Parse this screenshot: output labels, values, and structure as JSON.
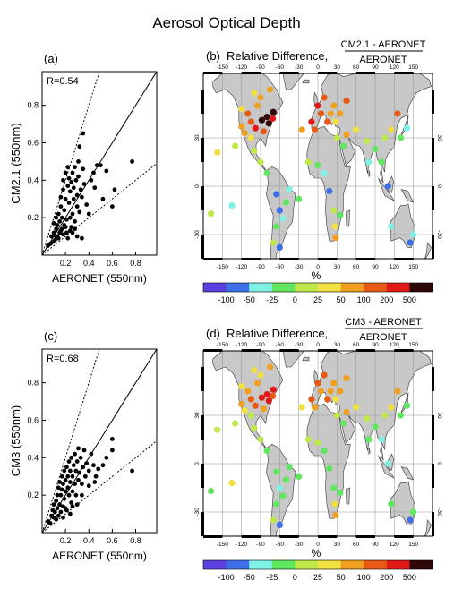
{
  "title": "Aerosol Optical Depth",
  "colors": {
    "land": "#c8c8c8",
    "ocean": "#ffffff",
    "grid": "#909090",
    "palette": [
      "#5b3fe0",
      "#3f6fe8",
      "#7ff2e6",
      "#5fe85f",
      "#bfe84a",
      "#f0e040",
      "#f0a020",
      "#e85a14",
      "#e01818",
      "#300808"
    ]
  },
  "colorbar": {
    "labels": [
      "-100",
      "-50",
      "-25",
      "0",
      "25",
      "50",
      "100",
      "200",
      "500"
    ]
  },
  "chart_data": [
    {
      "type": "scatter",
      "panel_label": "(a)",
      "annotation": "R=0.54",
      "xlabel": "AERONET  (550nm)",
      "ylabel": "CM2.1  (550nm)",
      "xlim": [
        0,
        0.98
      ],
      "ylim": [
        0,
        0.98
      ],
      "xticks": [
        "0.2",
        "0.4",
        "0.6",
        "0.8"
      ],
      "yticks": [
        "0.2",
        "0.4",
        "0.6",
        "0.8"
      ],
      "reference_lines": [
        "1:1",
        "2:1",
        "1:2"
      ],
      "points": [
        [
          0.05,
          0.05
        ],
        [
          0.07,
          0.06
        ],
        [
          0.08,
          0.1
        ],
        [
          0.09,
          0.07
        ],
        [
          0.1,
          0.12
        ],
        [
          0.1,
          0.17
        ],
        [
          0.11,
          0.08
        ],
        [
          0.12,
          0.14
        ],
        [
          0.12,
          0.2
        ],
        [
          0.13,
          0.1
        ],
        [
          0.13,
          0.16
        ],
        [
          0.14,
          0.22
        ],
        [
          0.15,
          0.12
        ],
        [
          0.15,
          0.18
        ],
        [
          0.16,
          0.26
        ],
        [
          0.16,
          0.31
        ],
        [
          0.17,
          0.14
        ],
        [
          0.17,
          0.2
        ],
        [
          0.18,
          0.35
        ],
        [
          0.18,
          0.4
        ],
        [
          0.19,
          0.16
        ],
        [
          0.19,
          0.24
        ],
        [
          0.2,
          0.3
        ],
        [
          0.2,
          0.44
        ],
        [
          0.21,
          0.12
        ],
        [
          0.21,
          0.19
        ],
        [
          0.22,
          0.37
        ],
        [
          0.22,
          0.47
        ],
        [
          0.23,
          0.28
        ],
        [
          0.23,
          0.41
        ],
        [
          0.24,
          0.2
        ],
        [
          0.24,
          0.34
        ],
        [
          0.25,
          0.15
        ],
        [
          0.25,
          0.39
        ],
        [
          0.26,
          0.22
        ],
        [
          0.26,
          0.44
        ],
        [
          0.27,
          0.3
        ],
        [
          0.27,
          0.36
        ],
        [
          0.28,
          0.47
        ],
        [
          0.28,
          0.18
        ],
        [
          0.29,
          0.4
        ],
        [
          0.3,
          0.26
        ],
        [
          0.3,
          0.32
        ],
        [
          0.31,
          0.42
        ],
        [
          0.31,
          0.5
        ],
        [
          0.32,
          0.23
        ],
        [
          0.32,
          0.58
        ],
        [
          0.33,
          0.35
        ],
        [
          0.34,
          0.31
        ],
        [
          0.35,
          0.46
        ],
        [
          0.35,
          0.65
        ],
        [
          0.36,
          0.38
        ],
        [
          0.38,
          0.27
        ],
        [
          0.4,
          0.22
        ],
        [
          0.42,
          0.4
        ],
        [
          0.44,
          0.44
        ],
        [
          0.45,
          0.36
        ],
        [
          0.47,
          0.48
        ],
        [
          0.5,
          0.48
        ],
        [
          0.52,
          0.3
        ],
        [
          0.55,
          0.45
        ],
        [
          0.6,
          0.26
        ],
        [
          0.62,
          0.35
        ],
        [
          0.77,
          0.5
        ],
        [
          0.14,
          0.09
        ],
        [
          0.18,
          0.11
        ],
        [
          0.22,
          0.09
        ],
        [
          0.26,
          0.12
        ],
        [
          0.3,
          0.1
        ],
        [
          0.34,
          0.09
        ],
        [
          0.16,
          0.13
        ],
        [
          0.12,
          0.1
        ],
        [
          0.2,
          0.15
        ],
        [
          0.24,
          0.13
        ],
        [
          0.28,
          0.14
        ]
      ]
    },
    {
      "type": "map",
      "panel_label": "(b)",
      "title": "Relative Difference,",
      "fraction_numerator": "CM2.1 - AERONET",
      "fraction_denominator": "AERONET",
      "lon_ticks": [
        "-150",
        "-120",
        "-90",
        "-60",
        "-30",
        "0",
        "30",
        "60",
        "90",
        "120",
        "150"
      ],
      "lat_ticks": [
        "30",
        "0",
        "-30"
      ],
      "colorbar_unit": "%",
      "sites": [
        [
          -158,
          21,
          5
        ],
        [
          -120,
          37,
          6
        ],
        [
          -105,
          40,
          7
        ],
        [
          -98,
          36,
          8
        ],
        [
          -88,
          41,
          9
        ],
        [
          -77,
          39,
          9
        ],
        [
          -71,
          42,
          8
        ],
        [
          -80,
          43,
          9
        ],
        [
          -110,
          45,
          7
        ],
        [
          -95,
          50,
          6
        ],
        [
          -90,
          55,
          6
        ],
        [
          -100,
          58,
          5
        ],
        [
          -75,
          60,
          6
        ],
        [
          -70,
          46,
          9
        ],
        [
          -85,
          34,
          7
        ],
        [
          -105,
          30,
          5
        ],
        [
          -120,
          48,
          5
        ],
        [
          -115,
          33,
          6
        ],
        [
          -100,
          22,
          4
        ],
        [
          -90,
          15,
          4
        ],
        [
          -80,
          8,
          3
        ],
        [
          -65,
          -5,
          1
        ],
        [
          -60,
          -15,
          1
        ],
        [
          -55,
          -20,
          2
        ],
        [
          -65,
          -25,
          3
        ],
        [
          -70,
          -35,
          4
        ],
        [
          -50,
          -10,
          3
        ],
        [
          -45,
          -2,
          2
        ],
        [
          -30,
          -8,
          3
        ],
        [
          -60,
          -38,
          1
        ],
        [
          -168,
          -17,
          4
        ],
        [
          -135,
          -12,
          2
        ],
        [
          15,
          40,
          7
        ],
        [
          25,
          50,
          6
        ],
        [
          35,
          45,
          6
        ],
        [
          0,
          50,
          8
        ],
        [
          10,
          55,
          7
        ],
        [
          20,
          45,
          6
        ],
        [
          28,
          40,
          5
        ],
        [
          -10,
          40,
          8
        ],
        [
          -5,
          35,
          7
        ],
        [
          40,
          25,
          3
        ],
        [
          45,
          32,
          6
        ],
        [
          30,
          30,
          4
        ],
        [
          -15,
          15,
          4
        ],
        [
          0,
          13,
          3
        ],
        [
          10,
          8,
          2
        ],
        [
          18,
          -3,
          1
        ],
        [
          25,
          -15,
          4
        ],
        [
          27,
          -25,
          5
        ],
        [
          35,
          -18,
          3
        ],
        [
          28,
          -32,
          6
        ],
        [
          77,
          28,
          4
        ],
        [
          80,
          15,
          2
        ],
        [
          90,
          23,
          3
        ],
        [
          105,
          30,
          4
        ],
        [
          115,
          35,
          5
        ],
        [
          125,
          45,
          7
        ],
        [
          140,
          36,
          2
        ],
        [
          130,
          30,
          3
        ],
        [
          100,
          15,
          3
        ],
        [
          110,
          0,
          1
        ],
        [
          115,
          -25,
          2
        ],
        [
          145,
          -35,
          1
        ],
        [
          150,
          -30,
          2
        ],
        [
          -130,
          25,
          4
        ],
        [
          45,
          53,
          7
        ],
        [
          60,
          35,
          5
        ],
        [
          -25,
          35,
          6
        ],
        [
          5,
          45,
          7
        ]
      ]
    },
    {
      "type": "scatter",
      "panel_label": "(c)",
      "annotation": "R=0.68",
      "xlabel": "AERONET  (550nm)",
      "ylabel": "CM3  (550nm)",
      "xlim": [
        0,
        0.98
      ],
      "ylim": [
        0,
        0.98
      ],
      "xticks": [
        "0.2",
        "0.4",
        "0.6",
        "0.8"
      ],
      "yticks": [
        "0.2",
        "0.4",
        "0.6",
        "0.8"
      ],
      "reference_lines": [
        "1:1",
        "2:1",
        "1:2"
      ],
      "points": [
        [
          0.05,
          0.06
        ],
        [
          0.07,
          0.05
        ],
        [
          0.08,
          0.09
        ],
        [
          0.09,
          0.12
        ],
        [
          0.1,
          0.08
        ],
        [
          0.1,
          0.15
        ],
        [
          0.11,
          0.11
        ],
        [
          0.12,
          0.07
        ],
        [
          0.12,
          0.17
        ],
        [
          0.13,
          0.13
        ],
        [
          0.13,
          0.2
        ],
        [
          0.14,
          0.09
        ],
        [
          0.14,
          0.24
        ],
        [
          0.15,
          0.15
        ],
        [
          0.15,
          0.27
        ],
        [
          0.16,
          0.11
        ],
        [
          0.16,
          0.2
        ],
        [
          0.17,
          0.23
        ],
        [
          0.17,
          0.3
        ],
        [
          0.18,
          0.14
        ],
        [
          0.18,
          0.26
        ],
        [
          0.19,
          0.18
        ],
        [
          0.19,
          0.33
        ],
        [
          0.2,
          0.22
        ],
        [
          0.2,
          0.28
        ],
        [
          0.21,
          0.12
        ],
        [
          0.21,
          0.35
        ],
        [
          0.22,
          0.24
        ],
        [
          0.22,
          0.3
        ],
        [
          0.23,
          0.2
        ],
        [
          0.23,
          0.38
        ],
        [
          0.24,
          0.27
        ],
        [
          0.24,
          0.33
        ],
        [
          0.25,
          0.16
        ],
        [
          0.25,
          0.4
        ],
        [
          0.26,
          0.22
        ],
        [
          0.26,
          0.3
        ],
        [
          0.27,
          0.36
        ],
        [
          0.28,
          0.26
        ],
        [
          0.28,
          0.42
        ],
        [
          0.29,
          0.2
        ],
        [
          0.29,
          0.33
        ],
        [
          0.3,
          0.38
        ],
        [
          0.31,
          0.28
        ],
        [
          0.31,
          0.45
        ],
        [
          0.32,
          0.32
        ],
        [
          0.33,
          0.4
        ],
        [
          0.34,
          0.26
        ],
        [
          0.35,
          0.35
        ],
        [
          0.36,
          0.44
        ],
        [
          0.37,
          0.3
        ],
        [
          0.38,
          0.37
        ],
        [
          0.4,
          0.33
        ],
        [
          0.42,
          0.42
        ],
        [
          0.44,
          0.36
        ],
        [
          0.46,
          0.3
        ],
        [
          0.48,
          0.34
        ],
        [
          0.52,
          0.36
        ],
        [
          0.55,
          0.4
        ],
        [
          0.6,
          0.44
        ],
        [
          0.6,
          0.5
        ],
        [
          0.77,
          0.33
        ],
        [
          0.3,
          0.15
        ],
        [
          0.34,
          0.2
        ],
        [
          0.24,
          0.1
        ],
        [
          0.18,
          0.08
        ],
        [
          0.4,
          0.25
        ],
        [
          0.45,
          0.27
        ],
        [
          0.2,
          0.13
        ],
        [
          0.26,
          0.14
        ]
      ]
    },
    {
      "type": "map",
      "panel_label": "(d)",
      "title": "Relative Difference,",
      "fraction_numerator": "CM3 - AERONET",
      "fraction_denominator": "AERONET",
      "lon_ticks": [
        "-150",
        "-120",
        "-90",
        "-60",
        "-30",
        "0",
        "30",
        "60",
        "90",
        "120",
        "150"
      ],
      "lat_ticks": [
        "30",
        "0",
        "-30"
      ],
      "colorbar_unit": "%",
      "sites": [
        [
          -158,
          21,
          4
        ],
        [
          -120,
          37,
          6
        ],
        [
          -105,
          40,
          7
        ],
        [
          -98,
          36,
          7
        ],
        [
          -88,
          41,
          8
        ],
        [
          -77,
          39,
          8
        ],
        [
          -71,
          42,
          7
        ],
        [
          -80,
          43,
          8
        ],
        [
          -110,
          45,
          6
        ],
        [
          -95,
          50,
          6
        ],
        [
          -90,
          55,
          5
        ],
        [
          -100,
          58,
          5
        ],
        [
          -75,
          60,
          6
        ],
        [
          -70,
          46,
          8
        ],
        [
          -85,
          34,
          6
        ],
        [
          -105,
          30,
          4
        ],
        [
          -120,
          48,
          5
        ],
        [
          -115,
          33,
          5
        ],
        [
          -100,
          22,
          4
        ],
        [
          -90,
          15,
          4
        ],
        [
          -80,
          8,
          3
        ],
        [
          -65,
          -5,
          3
        ],
        [
          -60,
          -15,
          2
        ],
        [
          -55,
          -20,
          3
        ],
        [
          -65,
          -25,
          3
        ],
        [
          -70,
          -35,
          4
        ],
        [
          -50,
          -10,
          3
        ],
        [
          -45,
          -2,
          3
        ],
        [
          -30,
          -8,
          3
        ],
        [
          -60,
          -38,
          1
        ],
        [
          -168,
          -17,
          3
        ],
        [
          -135,
          -12,
          5
        ],
        [
          15,
          40,
          7
        ],
        [
          25,
          50,
          6
        ],
        [
          35,
          45,
          6
        ],
        [
          0,
          50,
          7
        ],
        [
          10,
          55,
          7
        ],
        [
          20,
          45,
          6
        ],
        [
          28,
          40,
          5
        ],
        [
          -10,
          40,
          7
        ],
        [
          -5,
          35,
          6
        ],
        [
          40,
          25,
          3
        ],
        [
          45,
          32,
          6
        ],
        [
          30,
          30,
          4
        ],
        [
          -15,
          15,
          4
        ],
        [
          0,
          13,
          4
        ],
        [
          10,
          8,
          3
        ],
        [
          18,
          -3,
          3
        ],
        [
          25,
          -15,
          3
        ],
        [
          27,
          -25,
          5
        ],
        [
          35,
          -18,
          3
        ],
        [
          28,
          -32,
          6
        ],
        [
          77,
          28,
          4
        ],
        [
          80,
          15,
          3
        ],
        [
          90,
          23,
          3
        ],
        [
          105,
          30,
          4
        ],
        [
          115,
          35,
          5
        ],
        [
          125,
          45,
          6
        ],
        [
          140,
          36,
          3
        ],
        [
          130,
          30,
          3
        ],
        [
          100,
          15,
          2
        ],
        [
          110,
          0,
          2
        ],
        [
          115,
          -25,
          3
        ],
        [
          145,
          -35,
          1
        ],
        [
          150,
          -30,
          3
        ],
        [
          -130,
          25,
          4
        ],
        [
          45,
          53,
          6
        ],
        [
          60,
          35,
          5
        ],
        [
          -25,
          35,
          5
        ],
        [
          5,
          45,
          6
        ]
      ]
    }
  ]
}
